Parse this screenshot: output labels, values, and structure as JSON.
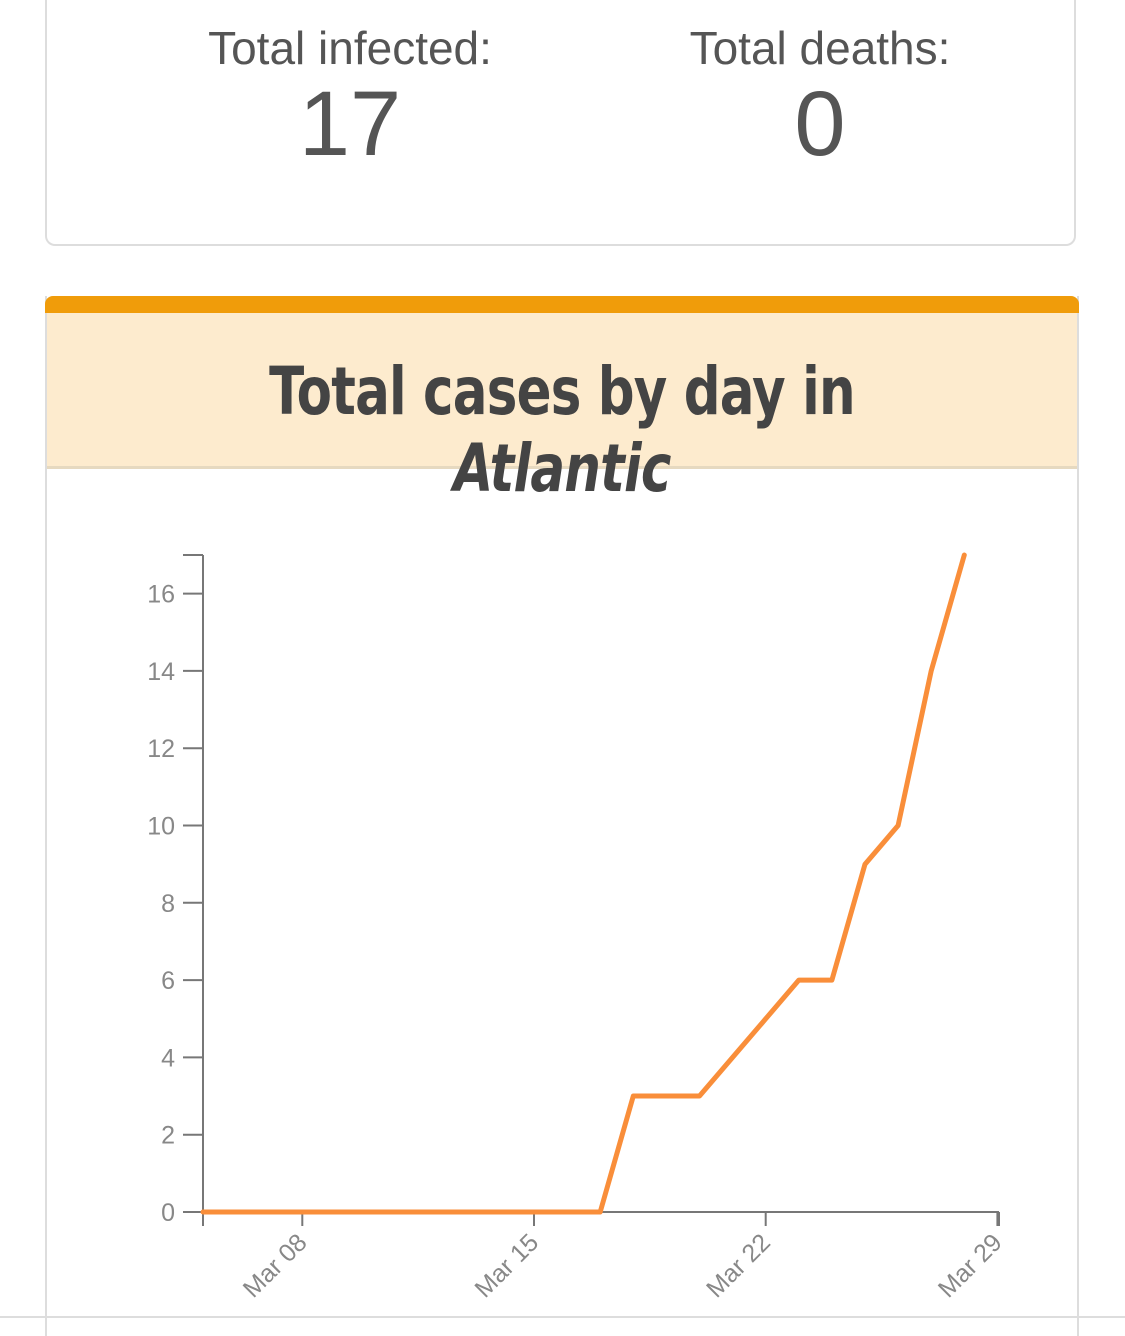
{
  "stats": {
    "infected_label": "Total infected:",
    "infected_value": "17",
    "deaths_label": "Total deaths:",
    "deaths_value": "0"
  },
  "chart": {
    "title_prefix": "Total cases by day in ",
    "title_region": "Atlantic"
  },
  "colors": {
    "accent_bar": "#f09c0a",
    "header_bg": "#fdebce",
    "line": "#f98e3a"
  },
  "chart_data": {
    "type": "line",
    "title": "Total cases by day in Atlantic",
    "xlabel": "",
    "ylabel": "",
    "x": [
      "Mar 05",
      "Mar 06",
      "Mar 07",
      "Mar 08",
      "Mar 09",
      "Mar 10",
      "Mar 11",
      "Mar 12",
      "Mar 13",
      "Mar 14",
      "Mar 15",
      "Mar 16",
      "Mar 17",
      "Mar 18",
      "Mar 19",
      "Mar 20",
      "Mar 21",
      "Mar 22",
      "Mar 23",
      "Mar 24",
      "Mar 25",
      "Mar 26",
      "Mar 27",
      "Mar 28"
    ],
    "values": [
      0,
      0,
      0,
      0,
      0,
      0,
      0,
      0,
      0,
      0,
      0,
      0,
      0,
      3,
      3,
      3,
      4,
      5,
      6,
      6,
      9,
      10,
      14,
      17
    ],
    "x_ticks": [
      "Mar 08",
      "Mar 15",
      "Mar 22",
      "Mar 29"
    ],
    "y_ticks": [
      0,
      2,
      4,
      6,
      8,
      10,
      12,
      14,
      16
    ],
    "ylim": [
      0,
      17
    ],
    "grid": false,
    "legend": "none"
  }
}
